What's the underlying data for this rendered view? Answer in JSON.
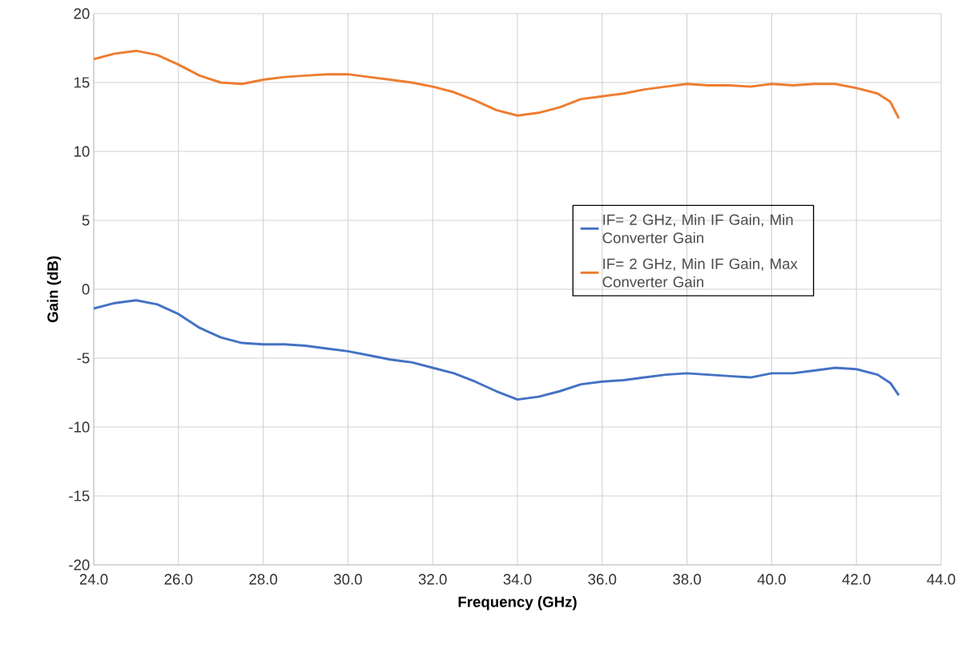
{
  "chart_data": {
    "type": "line",
    "xlabel": "Frequency (GHz)",
    "ylabel": "Gain (dB)",
    "x": [
      24.0,
      24.5,
      25.0,
      25.5,
      26.0,
      26.5,
      27.0,
      27.5,
      28.0,
      28.5,
      29.0,
      29.5,
      30.0,
      30.5,
      31.0,
      31.5,
      32.0,
      32.5,
      33.0,
      33.5,
      34.0,
      34.5,
      35.0,
      35.5,
      36.0,
      36.5,
      37.0,
      37.5,
      38.0,
      38.5,
      39.0,
      39.5,
      40.0,
      40.5,
      41.0,
      41.5,
      42.0,
      42.5,
      42.8,
      43.0
    ],
    "series": [
      {
        "name": "IF= 2 GHz, Min IF Gain, Min Converter Gain",
        "color": "#4472c4",
        "values": [
          -1.4,
          -1.0,
          -0.8,
          -1.1,
          -1.8,
          -2.8,
          -3.5,
          -3.9,
          -4.0,
          -4.0,
          -4.1,
          -4.3,
          -4.5,
          -4.8,
          -5.1,
          -5.3,
          -5.7,
          -6.1,
          -6.7,
          -7.4,
          -8.0,
          -7.8,
          -7.4,
          -6.9,
          -6.7,
          -6.6,
          -6.4,
          -6.2,
          -6.1,
          -6.2,
          -6.3,
          -6.4,
          -6.1,
          -6.1,
          -5.9,
          -5.7,
          -5.8,
          -6.2,
          -6.8,
          -7.7
        ]
      },
      {
        "name": "IF= 2 GHz, Min IF Gain, Max Converter Gain",
        "color": "#ed7d31",
        "values": [
          16.7,
          17.1,
          17.3,
          17.0,
          16.3,
          15.5,
          15.0,
          14.9,
          15.2,
          15.4,
          15.5,
          15.6,
          15.6,
          15.4,
          15.2,
          15.0,
          14.7,
          14.3,
          13.7,
          13.0,
          12.6,
          12.8,
          13.2,
          13.8,
          14.0,
          14.2,
          14.5,
          14.7,
          14.9,
          14.8,
          14.8,
          14.7,
          14.9,
          14.8,
          14.9,
          14.9,
          14.6,
          14.2,
          13.6,
          12.4
        ]
      }
    ],
    "xlim": [
      24,
      44
    ],
    "xticks": [
      {
        "value": 24,
        "label": "24.0"
      },
      {
        "value": 26,
        "label": "26.0"
      },
      {
        "value": 28,
        "label": "28.0"
      },
      {
        "value": 30,
        "label": "30.0"
      },
      {
        "value": 32,
        "label": "32.0"
      },
      {
        "value": 34,
        "label": "34.0"
      },
      {
        "value": 36,
        "label": "36.0"
      },
      {
        "value": 38,
        "label": "38.0"
      },
      {
        "value": 40,
        "label": "40.0"
      },
      {
        "value": 42,
        "label": "42.0"
      },
      {
        "value": 44,
        "label": "44.0"
      }
    ],
    "ylim": [
      -20,
      20
    ],
    "yticks": [
      -20,
      -15,
      -10,
      -5,
      0,
      5,
      10,
      15,
      20
    ],
    "grid": true,
    "legend": "right",
    "marker": "none",
    "line_style": "solid"
  }
}
